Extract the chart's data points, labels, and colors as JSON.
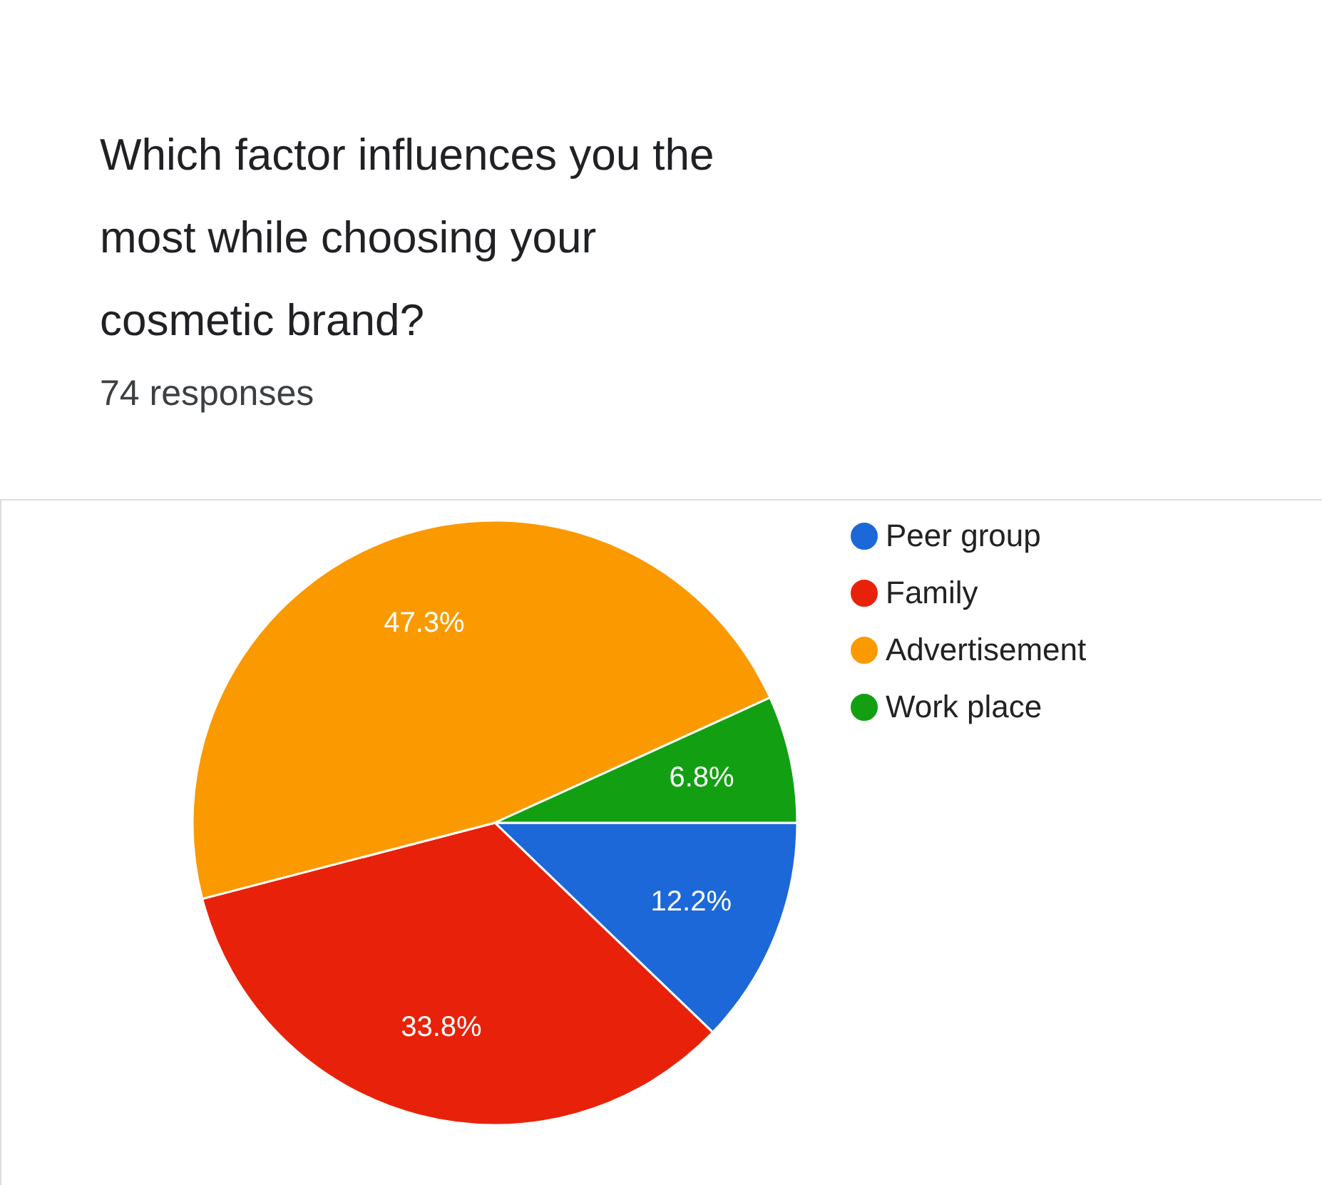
{
  "chart_data": {
    "type": "pie",
    "title": "Which factor influences you the most while choosing your cosmetic brand?",
    "subtitle": "74 responses",
    "categories": [
      "Peer group",
      "Family",
      "Advertisement",
      "Work place"
    ],
    "values": [
      12.2,
      33.8,
      47.3,
      6.8
    ],
    "colors": [
      "#1c68d8",
      "#e8220a",
      "#fa9a00",
      "#12a012"
    ],
    "value_labels": [
      "12.2%",
      "33.8%",
      "47.3%",
      "6.8%"
    ],
    "legend": "right"
  }
}
